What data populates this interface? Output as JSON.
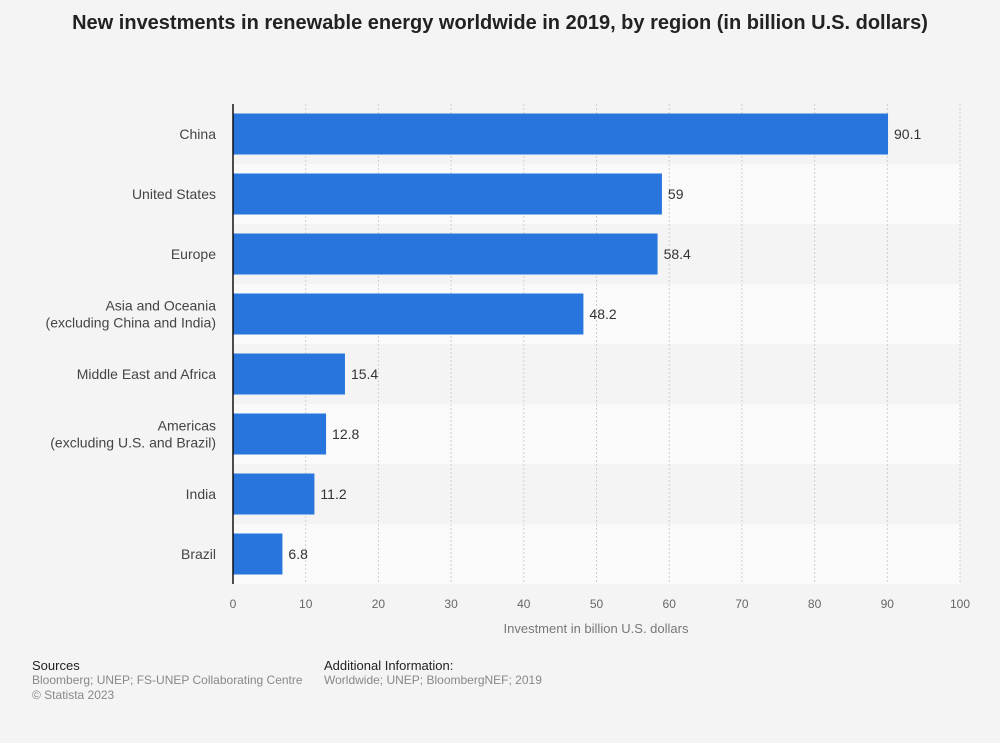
{
  "chart_data": {
    "type": "bar",
    "orientation": "horizontal",
    "title": "New investments in renewable energy worldwide in 2019, by region (in billion U.S. dollars)",
    "xlabel": "Investment in billion U.S. dollars",
    "ylabel": "",
    "categories": [
      [
        "China"
      ],
      [
        "United States"
      ],
      [
        "Europe"
      ],
      [
        "Asia and Oceania",
        "(excluding China and India)"
      ],
      [
        "Middle East and Africa"
      ],
      [
        "Americas",
        "(excluding U.S. and Brazil)"
      ],
      [
        "India"
      ],
      [
        "Brazil"
      ]
    ],
    "values": [
      90.1,
      59,
      58.4,
      48.2,
      15.4,
      12.8,
      11.2,
      6.8
    ],
    "value_labels": [
      "90.1",
      "59",
      "58.4",
      "48.2",
      "15.4",
      "12.8",
      "11.2",
      "6.8"
    ],
    "xlim": [
      0,
      100
    ],
    "xticks": [
      0,
      10,
      20,
      30,
      40,
      50,
      60,
      70,
      80,
      90,
      100
    ],
    "grid": true,
    "bar_color": "#2876dd"
  },
  "footer": {
    "sources_title": "Sources",
    "sources_text": "Bloomberg; UNEP; FS-UNEP Collaborating Centre",
    "copyright": "© Statista 2023",
    "info_title": "Additional Information:",
    "info_text": "Worldwide; UNEP; BloombergNEF; 2019"
  }
}
